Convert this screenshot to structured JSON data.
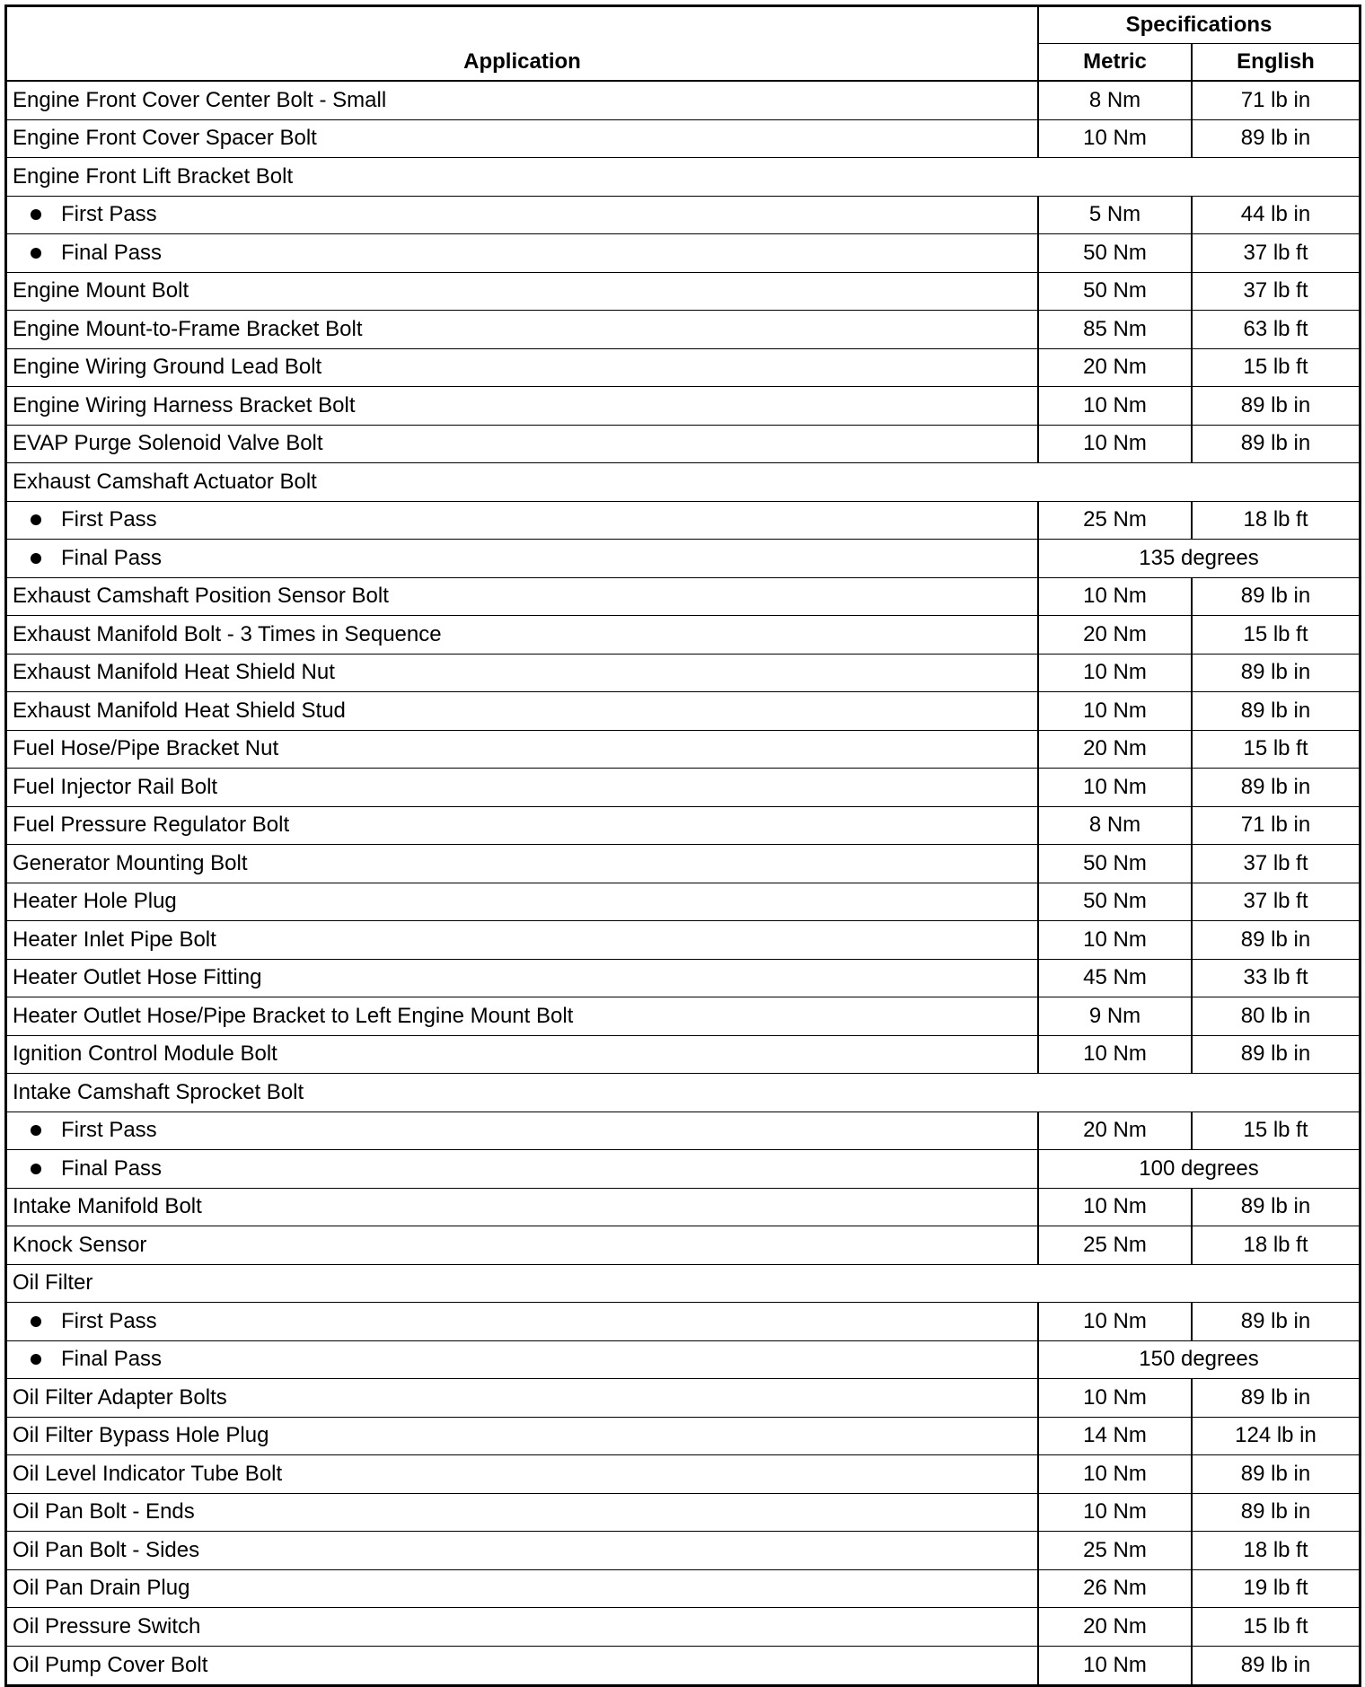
{
  "header": {
    "application": "Application",
    "specifications": "Specifications",
    "metric": "Metric",
    "english": "English"
  },
  "rows": [
    {
      "application": "Engine Front Cover Center Bolt - Small",
      "metric": "8 Nm",
      "english": "71 lb in"
    },
    {
      "application": "Engine Front Cover Spacer Bolt",
      "metric": "10 Nm",
      "english": "89 lb in"
    },
    {
      "application": "Engine Front Lift Bracket Bolt",
      "group": true
    },
    {
      "application": "First Pass",
      "bullet": true,
      "metric": "5 Nm",
      "english": "44 lb in"
    },
    {
      "application": "Final Pass",
      "bullet": true,
      "metric": "50 Nm",
      "english": "37 lb ft"
    },
    {
      "application": "Engine Mount Bolt",
      "metric": "50 Nm",
      "english": "37 lb ft"
    },
    {
      "application": "Engine Mount-to-Frame Bracket Bolt",
      "metric": "85 Nm",
      "english": "63 lb ft"
    },
    {
      "application": "Engine Wiring Ground Lead Bolt",
      "metric": "20 Nm",
      "english": "15 lb ft"
    },
    {
      "application": "Engine Wiring Harness Bracket Bolt",
      "metric": "10 Nm",
      "english": "89 lb in"
    },
    {
      "application": "EVAP Purge Solenoid Valve Bolt",
      "metric": "10 Nm",
      "english": "89 lb in"
    },
    {
      "application": "Exhaust Camshaft Actuator Bolt",
      "group": true
    },
    {
      "application": "First Pass",
      "bullet": true,
      "metric": "25 Nm",
      "english": "18 lb ft"
    },
    {
      "application": "Final Pass",
      "bullet": true,
      "spec": "135 degrees"
    },
    {
      "application": "Exhaust Camshaft Position Sensor Bolt",
      "metric": "10 Nm",
      "english": "89 lb in"
    },
    {
      "application": "Exhaust Manifold Bolt - 3 Times in Sequence",
      "metric": "20 Nm",
      "english": "15 lb ft"
    },
    {
      "application": "Exhaust Manifold Heat Shield Nut",
      "metric": "10 Nm",
      "english": "89 lb in"
    },
    {
      "application": "Exhaust Manifold Heat Shield Stud",
      "metric": "10 Nm",
      "english": "89 lb in"
    },
    {
      "application": "Fuel Hose/Pipe Bracket Nut",
      "metric": "20 Nm",
      "english": "15 lb ft"
    },
    {
      "application": "Fuel Injector Rail Bolt",
      "metric": "10 Nm",
      "english": "89 lb in"
    },
    {
      "application": "Fuel Pressure Regulator Bolt",
      "metric": "8 Nm",
      "english": "71 lb in"
    },
    {
      "application": "Generator Mounting Bolt",
      "metric": "50 Nm",
      "english": "37 lb ft"
    },
    {
      "application": "Heater Hole Plug",
      "metric": "50 Nm",
      "english": "37 lb ft"
    },
    {
      "application": "Heater Inlet Pipe Bolt",
      "metric": "10 Nm",
      "english": "89 lb in"
    },
    {
      "application": "Heater Outlet Hose Fitting",
      "metric": "45 Nm",
      "english": "33 lb ft"
    },
    {
      "application": "Heater Outlet Hose/Pipe Bracket to Left Engine Mount Bolt",
      "metric": "9 Nm",
      "english": "80 lb in"
    },
    {
      "application": "Ignition Control Module Bolt",
      "metric": "10 Nm",
      "english": "89 lb in"
    },
    {
      "application": "Intake Camshaft Sprocket Bolt",
      "group": true
    },
    {
      "application": "First Pass",
      "bullet": true,
      "metric": "20 Nm",
      "english": "15 lb ft"
    },
    {
      "application": "Final Pass",
      "bullet": true,
      "spec": "100 degrees"
    },
    {
      "application": "Intake Manifold Bolt",
      "metric": "10 Nm",
      "english": "89 lb in"
    },
    {
      "application": "Knock Sensor",
      "metric": "25 Nm",
      "english": "18 lb ft"
    },
    {
      "application": "Oil Filter",
      "group": true
    },
    {
      "application": "First Pass",
      "bullet": true,
      "metric": "10 Nm",
      "english": "89 lb in"
    },
    {
      "application": "Final Pass",
      "bullet": true,
      "spec": "150 degrees"
    },
    {
      "application": "Oil Filter Adapter Bolts",
      "metric": "10 Nm",
      "english": "89 lb in"
    },
    {
      "application": "Oil Filter Bypass Hole Plug",
      "metric": "14 Nm",
      "english": "124 lb in"
    },
    {
      "application": "Oil Level Indicator Tube Bolt",
      "metric": "10 Nm",
      "english": "89 lb in"
    },
    {
      "application": "Oil Pan Bolt - Ends",
      "metric": "10 Nm",
      "english": "89 lb in"
    },
    {
      "application": "Oil Pan Bolt - Sides",
      "metric": "25 Nm",
      "english": "18 lb ft"
    },
    {
      "application": "Oil Pan Drain Plug",
      "metric": "26 Nm",
      "english": "19 lb ft"
    },
    {
      "application": "Oil Pressure Switch",
      "metric": "20 Nm",
      "english": "15 lb ft"
    },
    {
      "application": "Oil Pump Cover Bolt",
      "metric": "10 Nm",
      "english": "89 lb in"
    }
  ]
}
